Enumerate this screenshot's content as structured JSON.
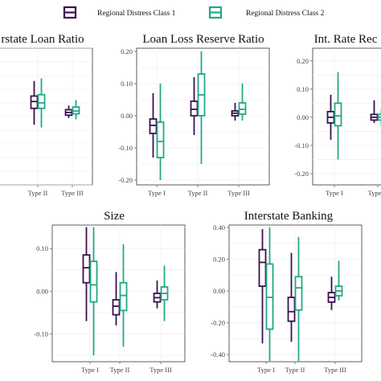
{
  "legend": {
    "entries": [
      {
        "name": "Regional Distress Class 1",
        "color": "#3b0f51"
      },
      {
        "name": "Regional Distress Class 2",
        "color": "#22a884"
      }
    ],
    "placement": "top"
  },
  "chart_data": [
    {
      "type": "boxplot",
      "title": "Interstate Loan Ratio",
      "title_visible": "rstate Loan Ratio",
      "categories": [
        "Type II",
        "Type III"
      ],
      "ylim": [
        -0.25,
        0.25
      ],
      "yticks": [],
      "grid": true,
      "series": [
        {
          "name": "Regional Distress Class 1",
          "boxes": [
            {
              "category": "Type II",
              "whisker_low": -0.03,
              "q1": 0.03,
              "median": 0.055,
              "q3": 0.075,
              "whisker_high": 0.13
            },
            {
              "category": "Type III",
              "whisker_low": -0.005,
              "q1": 0.005,
              "median": 0.015,
              "q3": 0.025,
              "whisker_high": 0.04
            }
          ]
        },
        {
          "name": "Regional Distress Class 2",
          "boxes": [
            {
              "category": "Type II",
              "whisker_low": -0.04,
              "q1": 0.03,
              "median": 0.05,
              "q3": 0.08,
              "whisker_high": 0.14
            },
            {
              "category": "Type III",
              "whisker_low": -0.01,
              "q1": 0.01,
              "median": 0.02,
              "q3": 0.035,
              "whisker_high": 0.06
            }
          ]
        }
      ]
    },
    {
      "type": "boxplot",
      "title": "Loan Loss Reserve Ratio",
      "categories": [
        "Type I",
        "Type II",
        "Type III"
      ],
      "ylim": [
        -0.215,
        0.21
      ],
      "yticks": [
        "0.20",
        "0.10",
        "0.00",
        "-0.10",
        "-0.20"
      ],
      "ytick_values": [
        0.2,
        0.1,
        0.0,
        -0.1,
        -0.2
      ],
      "grid": true,
      "series": [
        {
          "name": "Regional Distress Class 1",
          "boxes": [
            {
              "category": "Type I",
              "whisker_low": -0.13,
              "q1": -0.055,
              "median": -0.03,
              "q3": -0.01,
              "whisker_high": 0.07
            },
            {
              "category": "Type II",
              "whisker_low": -0.06,
              "q1": 0.0,
              "median": 0.02,
              "q3": 0.045,
              "whisker_high": 0.12
            },
            {
              "category": "Type III",
              "whisker_low": -0.015,
              "q1": 0.0,
              "median": 0.008,
              "q3": 0.015,
              "whisker_high": 0.04
            }
          ]
        },
        {
          "name": "Regional Distress Class 2",
          "boxes": [
            {
              "category": "Type I",
              "whisker_low": -0.2,
              "q1": -0.13,
              "median": -0.08,
              "q3": -0.02,
              "whisker_high": 0.1
            },
            {
              "category": "Type II",
              "whisker_low": -0.15,
              "q1": 0.0,
              "median": 0.065,
              "q3": 0.13,
              "whisker_high": 0.2
            },
            {
              "category": "Type III",
              "whisker_low": -0.015,
              "q1": 0.005,
              "median": 0.02,
              "q3": 0.04,
              "whisker_high": 0.1
            }
          ]
        }
      ]
    },
    {
      "type": "boxplot",
      "title": "Interest Rate Risk",
      "title_visible": "Int. Rate Rec",
      "categories": [
        "Type I",
        "Type II"
      ],
      "ylim": [
        -0.24,
        0.245
      ],
      "yticks": [
        "0.20",
        "0.10",
        "0.00",
        "-0.10",
        "-0.20"
      ],
      "ytick_values": [
        0.2,
        0.1,
        0.0,
        -0.1,
        -0.2
      ],
      "grid": true,
      "series": [
        {
          "name": "Regional Distress Class 1",
          "boxes": [
            {
              "category": "Type I",
              "whisker_low": -0.08,
              "q1": -0.02,
              "median": 0.0,
              "q3": 0.02,
              "whisker_high": 0.08
            },
            {
              "category": "Type II",
              "whisker_low": -0.02,
              "q1": -0.01,
              "median": 0.0,
              "q3": 0.01,
              "whisker_high": 0.06
            }
          ]
        },
        {
          "name": "Regional Distress Class 2",
          "boxes": [
            {
              "category": "Type I",
              "whisker_low": -0.15,
              "q1": -0.03,
              "median": 0.005,
              "q3": 0.05,
              "whisker_high": 0.16
            },
            {
              "category": "Type II",
              "whisker_low": -0.03,
              "q1": -0.01,
              "median": 0.0,
              "q3": 0.01,
              "whisker_high": 0.03
            }
          ]
        }
      ]
    },
    {
      "type": "boxplot",
      "title": "Size",
      "categories": [
        "Type I",
        "Type II",
        "Type III"
      ],
      "ylim": [
        -0.165,
        0.155
      ],
      "yticks": [
        "0.10",
        "0.00",
        "-0.10"
      ],
      "ytick_values": [
        0.1,
        0.0,
        -0.1
      ],
      "grid": true,
      "series": [
        {
          "name": "Regional Distress Class 1",
          "boxes": [
            {
              "category": "Type I",
              "whisker_low": -0.07,
              "q1": 0.02,
              "median": 0.055,
              "q3": 0.085,
              "whisker_high": 0.15
            },
            {
              "category": "Type II",
              "whisker_low": -0.08,
              "q1": -0.055,
              "median": -0.035,
              "q3": -0.02,
              "whisker_high": 0.045
            },
            {
              "category": "Type III",
              "whisker_low": -0.04,
              "q1": -0.025,
              "median": -0.015,
              "q3": -0.005,
              "whisker_high": 0.025
            }
          ]
        },
        {
          "name": "Regional Distress Class 2",
          "boxes": [
            {
              "category": "Type I",
              "whisker_low": -0.15,
              "q1": -0.025,
              "median": 0.015,
              "q3": 0.07,
              "whisker_high": 0.15
            },
            {
              "category": "Type II",
              "whisker_low": -0.13,
              "q1": -0.045,
              "median": -0.01,
              "q3": 0.02,
              "whisker_high": 0.11
            },
            {
              "category": "Type III",
              "whisker_low": -0.07,
              "q1": -0.02,
              "median": -0.005,
              "q3": 0.01,
              "whisker_high": 0.06
            }
          ]
        }
      ]
    },
    {
      "type": "boxplot",
      "title": "Interstate Banking",
      "categories": [
        "Type I",
        "Type II",
        "Type III"
      ],
      "ylim": [
        -0.445,
        0.415
      ],
      "yticks": [
        "0.40",
        "0.20",
        "0.00",
        "-0.20",
        "-0.40"
      ],
      "ytick_values": [
        0.4,
        0.2,
        0.0,
        -0.2,
        -0.4
      ],
      "grid": true,
      "series": [
        {
          "name": "Regional Distress Class 1",
          "boxes": [
            {
              "category": "Type I",
              "whisker_low": -0.33,
              "q1": 0.03,
              "median": 0.18,
              "q3": 0.26,
              "whisker_high": 0.39
            },
            {
              "category": "Type II",
              "whisker_low": -0.32,
              "q1": -0.19,
              "median": -0.13,
              "q3": -0.04,
              "whisker_high": 0.24
            },
            {
              "category": "Type III",
              "whisker_low": -0.12,
              "q1": -0.07,
              "median": -0.04,
              "q3": -0.01,
              "whisker_high": 0.09
            }
          ]
        },
        {
          "name": "Regional Distress Class 2",
          "boxes": [
            {
              "category": "Type I",
              "whisker_low": -0.44,
              "q1": -0.24,
              "median": -0.04,
              "q3": 0.17,
              "whisker_high": 0.4
            },
            {
              "category": "Type II",
              "whisker_low": -0.44,
              "q1": -0.12,
              "median": 0.02,
              "q3": 0.09,
              "whisker_high": 0.34
            },
            {
              "category": "Type III",
              "whisker_low": -0.06,
              "q1": -0.03,
              "median": 0.0,
              "q3": 0.03,
              "whisker_high": 0.19
            }
          ]
        }
      ]
    }
  ]
}
